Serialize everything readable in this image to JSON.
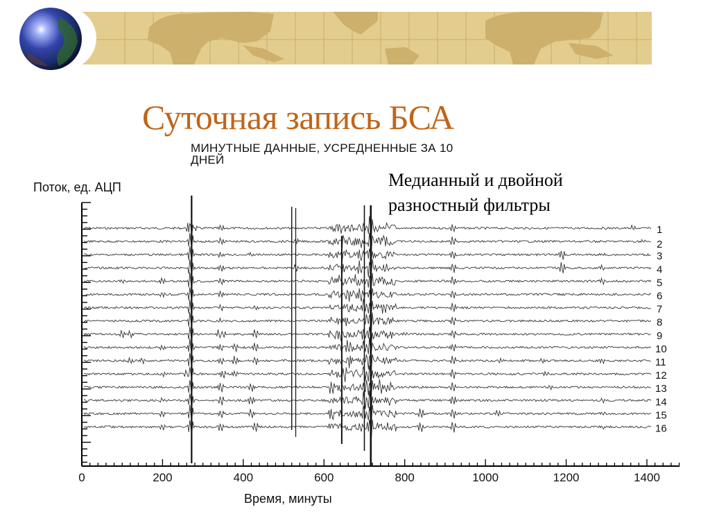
{
  "slide": {
    "title": "Суточная запись БСА",
    "note_line1": "Медианный и двойной",
    "note_line2": "разностный фильтры",
    "banner": {
      "icon": "globe-icon",
      "background": "world-map",
      "color": "#e3cd8e",
      "land_color": "#cdb06c"
    },
    "title_color": "#c0651a"
  },
  "chart_data": {
    "type": "line",
    "title": "МИНУТНЫЕ ДАННЫЕ, УСРЕДНЕННЫЕ ЗА 10 ДНЕЙ",
    "title_line1": "МИНУТНЫЕ ДАННЫЕ, УСРЕДНЕННЫЕ ЗА 10",
    "title_line2": "ДНЕЙ",
    "xlabel": "Время, минуты",
    "ylabel": "Поток, ед. АЦП",
    "xlim": [
      0,
      1500
    ],
    "x_ticks": [
      0,
      200,
      400,
      600,
      800,
      1000,
      1200,
      1400
    ],
    "x_tick_labels": [
      "0",
      "200",
      "400",
      "600",
      "800",
      "1000",
      "1200",
      "1400"
    ],
    "grid": false,
    "legend_position": "right (trace numbers)",
    "series_names": [
      "1",
      "2",
      "3",
      "4",
      "5",
      "6",
      "7",
      "8",
      "9",
      "10",
      "11",
      "12",
      "13",
      "14",
      "15",
      "16"
    ],
    "common_bursts_minutes": [
      200,
      270,
      345,
      530,
      640,
      660,
      690,
      715,
      750,
      920,
      1290
    ],
    "series": [
      {
        "name": "1",
        "spikes": [
          [
            265,
            1.4
          ],
          [
            270,
            3.0
          ],
          [
            280,
            0.8
          ],
          [
            345,
            0.8
          ],
          [
            640,
            1.2
          ],
          [
            670,
            1.5
          ],
          [
            700,
            1.5
          ],
          [
            715,
            3
          ],
          [
            750,
            1.2
          ],
          [
            920,
            1.2
          ],
          [
            1365,
            0.9
          ]
        ]
      },
      {
        "name": "2",
        "spikes": [
          [
            270,
            3.0
          ],
          [
            345,
            1.2
          ],
          [
            530,
            1.0
          ],
          [
            650,
            1.5
          ],
          [
            690,
            2
          ],
          [
            715,
            3
          ],
          [
            750,
            1.5
          ],
          [
            920,
            1.5
          ],
          [
            1390,
            0.6
          ]
        ]
      },
      {
        "name": "3",
        "spikes": [
          [
            270,
            3.0
          ],
          [
            345,
            0.9
          ],
          [
            420,
            0.6
          ],
          [
            650,
            1.5
          ],
          [
            690,
            2
          ],
          [
            715,
            3
          ],
          [
            920,
            1.5
          ],
          [
            1190,
            1.8
          ],
          [
            1290,
            0.6
          ]
        ]
      },
      {
        "name": "4",
        "spikes": [
          [
            270,
            3.0
          ],
          [
            345,
            1.0
          ],
          [
            530,
            1.0
          ],
          [
            650,
            1.5
          ],
          [
            690,
            2
          ],
          [
            715,
            3
          ],
          [
            750,
            1.2
          ],
          [
            920,
            1.5
          ],
          [
            1190,
            2.0
          ],
          [
            1290,
            0.8
          ]
        ]
      },
      {
        "name": "5",
        "spikes": [
          [
            100,
            0.8
          ],
          [
            200,
            1.0
          ],
          [
            270,
            3.0
          ],
          [
            345,
            1.2
          ],
          [
            640,
            1.4
          ],
          [
            680,
            2
          ],
          [
            715,
            3
          ],
          [
            920,
            1.5
          ],
          [
            1290,
            0.9
          ]
        ]
      },
      {
        "name": "6",
        "spikes": [
          [
            200,
            1.0
          ],
          [
            270,
            3.0
          ],
          [
            345,
            1.2
          ],
          [
            660,
            1.6
          ],
          [
            690,
            2
          ],
          [
            715,
            3
          ],
          [
            920,
            1.5
          ]
        ]
      },
      {
        "name": "7",
        "spikes": [
          [
            270,
            3.0
          ],
          [
            345,
            1.0
          ],
          [
            430,
            0.7
          ],
          [
            660,
            1.6
          ],
          [
            700,
            2
          ],
          [
            715,
            3
          ],
          [
            750,
            1.2
          ],
          [
            920,
            1.5
          ]
        ]
      },
      {
        "name": "8",
        "spikes": [
          [
            270,
            3.0
          ],
          [
            345,
            0.7
          ],
          [
            660,
            1.6
          ],
          [
            700,
            2
          ],
          [
            715,
            3
          ],
          [
            920,
            1.5
          ]
        ]
      },
      {
        "name": "9",
        "spikes": [
          [
            100,
            1.2
          ],
          [
            120,
            1.0
          ],
          [
            270,
            3.0
          ],
          [
            340,
            1.4
          ],
          [
            350,
            1.2
          ],
          [
            430,
            1.6
          ],
          [
            640,
            1.6
          ],
          [
            700,
            2
          ],
          [
            715,
            3
          ],
          [
            800,
            0.5
          ],
          [
            920,
            1.5
          ]
        ]
      },
      {
        "name": "10",
        "spikes": [
          [
            200,
            0.9
          ],
          [
            270,
            3.0
          ],
          [
            345,
            1.0
          ],
          [
            380,
            1.4
          ],
          [
            430,
            1.8
          ],
          [
            660,
            1.6
          ],
          [
            700,
            2
          ],
          [
            715,
            3
          ],
          [
            920,
            1.5
          ],
          [
            1290,
            0.6
          ]
        ]
      },
      {
        "name": "11",
        "spikes": [
          [
            120,
            1.0
          ],
          [
            150,
            0.9
          ],
          [
            270,
            3.0
          ],
          [
            345,
            1.0
          ],
          [
            380,
            1.6
          ],
          [
            430,
            1.4
          ],
          [
            660,
            1.6
          ],
          [
            700,
            2
          ],
          [
            715,
            3
          ],
          [
            920,
            1.5
          ],
          [
            1040,
            0.6
          ],
          [
            1140,
            0.7
          ],
          [
            1290,
            0.7
          ]
        ]
      },
      {
        "name": "12",
        "spikes": [
          [
            200,
            0.7
          ],
          [
            260,
            1.4
          ],
          [
            270,
            3.0
          ],
          [
            350,
            1.4
          ],
          [
            380,
            1.2
          ],
          [
            650,
            1.6
          ],
          [
            700,
            2
          ],
          [
            715,
            3
          ],
          [
            750,
            1.0
          ],
          [
            920,
            1.5
          ],
          [
            1150,
            0.5
          ]
        ]
      },
      {
        "name": "13",
        "spikes": [
          [
            270,
            3.0
          ],
          [
            345,
            1.6
          ],
          [
            420,
            1.4
          ],
          [
            620,
            1.8
          ],
          [
            640,
            1.6
          ],
          [
            700,
            2
          ],
          [
            715,
            3
          ],
          [
            740,
            1.8
          ],
          [
            760,
            1.8
          ],
          [
            920,
            1.5
          ],
          [
            1160,
            0.8
          ]
        ]
      },
      {
        "name": "14",
        "spikes": [
          [
            200,
            0.6
          ],
          [
            270,
            3.0
          ],
          [
            345,
            1.6
          ],
          [
            420,
            1.6
          ],
          [
            640,
            1.6
          ],
          [
            700,
            2
          ],
          [
            715,
            3
          ],
          [
            760,
            1.0
          ],
          [
            920,
            1.8
          ],
          [
            1290,
            0.6
          ]
        ]
      },
      {
        "name": "15",
        "spikes": [
          [
            200,
            1.2
          ],
          [
            270,
            3.0
          ],
          [
            345,
            1.4
          ],
          [
            420,
            1.6
          ],
          [
            620,
            1.6
          ],
          [
            700,
            2
          ],
          [
            715,
            3
          ],
          [
            840,
            1.6
          ],
          [
            920,
            1.8
          ],
          [
            1030,
            1.0
          ],
          [
            1290,
            0.6
          ]
        ]
      },
      {
        "name": "16",
        "spikes": [
          [
            200,
            0.9
          ],
          [
            270,
            3.0
          ],
          [
            345,
            1.6
          ],
          [
            430,
            1.6
          ],
          [
            640,
            1.6
          ],
          [
            690,
            2.2
          ],
          [
            715,
            3
          ],
          [
            760,
            1.4
          ],
          [
            840,
            1.6
          ],
          [
            920,
            1.8
          ],
          [
            1290,
            0.6
          ]
        ]
      }
    ]
  }
}
